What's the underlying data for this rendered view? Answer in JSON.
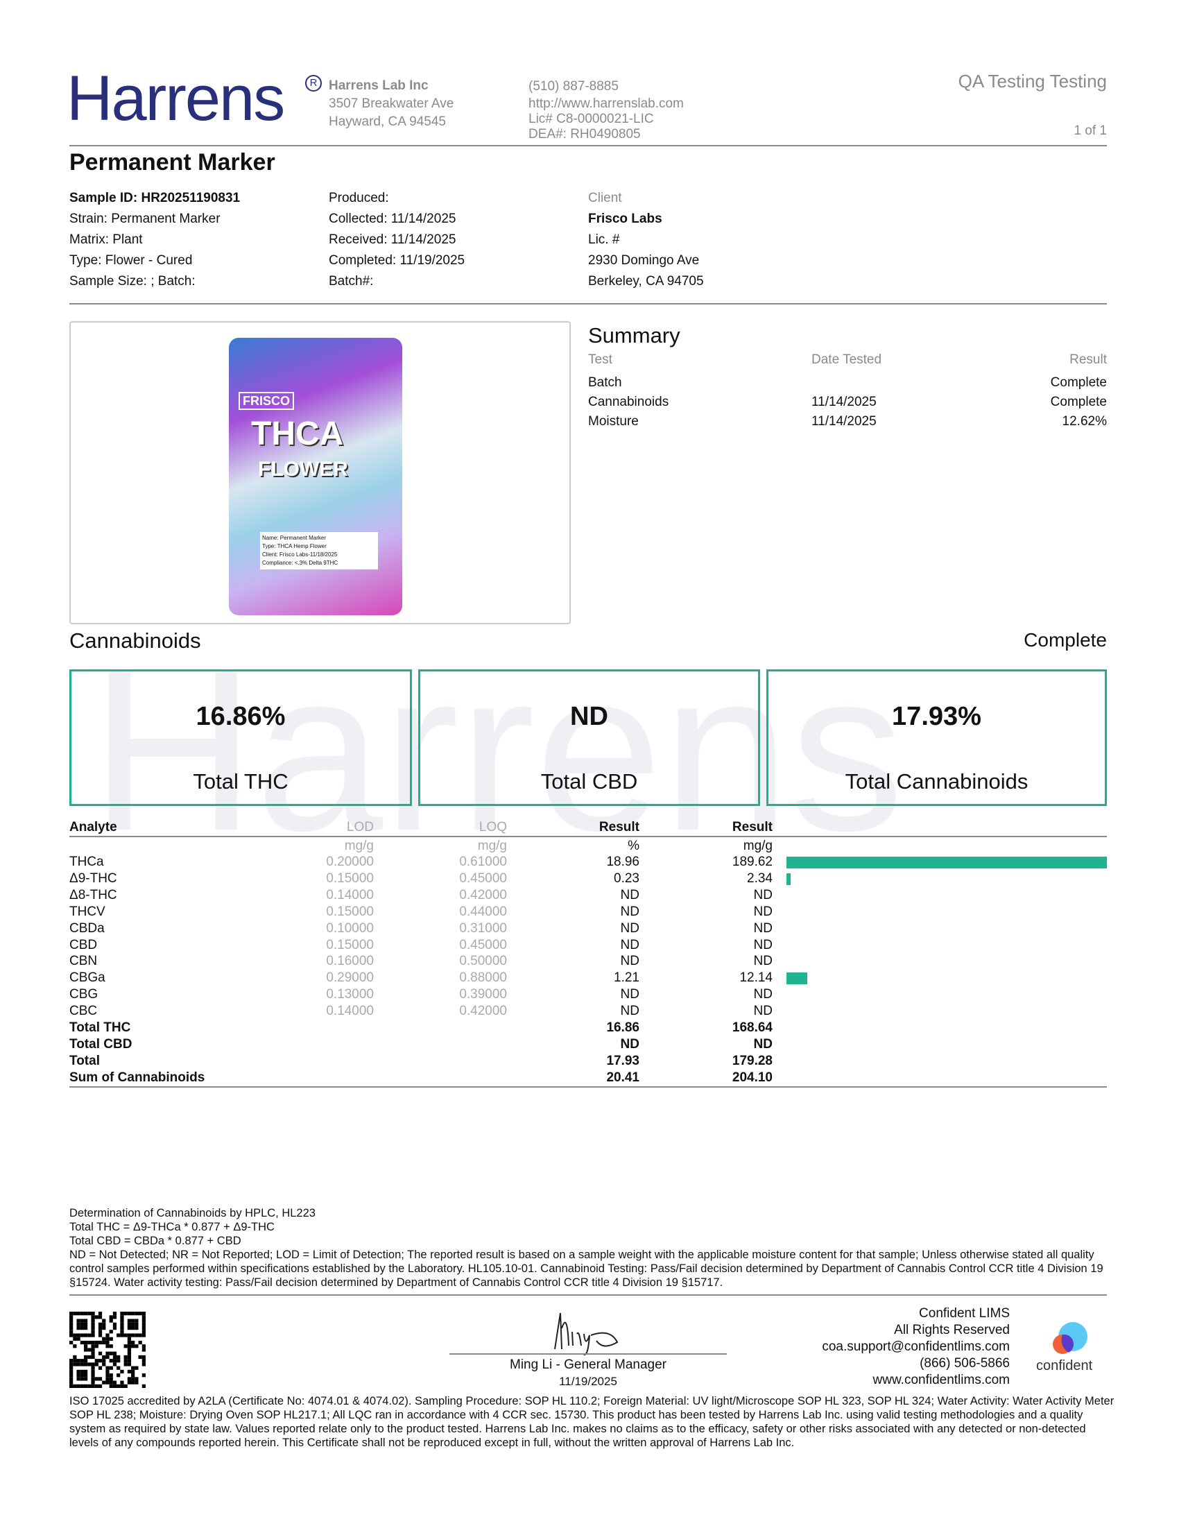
{
  "header": {
    "logo": "Harrens",
    "lab_name": "Harrens Lab Inc",
    "address1": "3507 Breakwater Ave",
    "address2": "Hayward, CA 94545",
    "phone": "(510) 887-8885",
    "website": "http://www.harrenslab.com",
    "license": "Lic# C8-0000021-LIC",
    "dea": "DEA#: RH0490805",
    "doc_title": "QA Testing Testing",
    "page": "1 of 1"
  },
  "title": "Permanent Marker",
  "sample": {
    "col1": [
      "Sample ID: HR20251190831",
      "Strain: Permanent Marker",
      "Matrix: Plant",
      "Type: Flower - Cured",
      "Sample Size: ; Batch:"
    ],
    "col2": [
      "Produced:",
      "Collected: 11/14/2025",
      "Received: 11/14/2025",
      "Completed: 11/19/2025",
      "Batch#:"
    ],
    "client_label": "Client",
    "client": [
      "Frisco Labs",
      "Lic. #",
      "2930 Domingo Ave",
      "Berkeley, CA 94705"
    ]
  },
  "product_image": {
    "brand": "FRISCO",
    "line1": "THCA",
    "line2": "FLOWER",
    "label": [
      "Name: Permanent Marker",
      "Type: THCA Hemp Flower",
      "Client: Frisco Labs-11/18/2025",
      "Compliance: <.3% Delta 9THC"
    ]
  },
  "summary": {
    "title": "Summary",
    "headers": [
      "Test",
      "Date Tested",
      "Result"
    ],
    "rows": [
      [
        "Batch",
        "",
        "Complete"
      ],
      [
        "Cannabinoids",
        "11/14/2025",
        "Complete"
      ],
      [
        "Moisture",
        "11/14/2025",
        "12.62%"
      ]
    ]
  },
  "cannabinoids": {
    "title": "Cannabinoids",
    "status": "Complete",
    "watermark": "Harrens",
    "cards": [
      {
        "value": "16.86%",
        "label": "Total THC"
      },
      {
        "value": "ND",
        "label": "Total CBD"
      },
      {
        "value": "17.93%",
        "label": "Total Cannabinoids"
      }
    ],
    "headers": [
      "Analyte",
      "LOD",
      "LOQ",
      "Result",
      "Result"
    ],
    "units": [
      "",
      "mg/g",
      "mg/g",
      "%",
      "mg/g"
    ],
    "rows": [
      [
        "THCa",
        "0.20000",
        "0.61000",
        "18.96",
        "189.62"
      ],
      [
        "Δ9-THC",
        "0.15000",
        "0.45000",
        "0.23",
        "2.34"
      ],
      [
        "Δ8-THC",
        "0.14000",
        "0.42000",
        "ND",
        "ND"
      ],
      [
        "THCV",
        "0.15000",
        "0.44000",
        "ND",
        "ND"
      ],
      [
        "CBDa",
        "0.10000",
        "0.31000",
        "ND",
        "ND"
      ],
      [
        "CBD",
        "0.15000",
        "0.45000",
        "ND",
        "ND"
      ],
      [
        "CBN",
        "0.16000",
        "0.50000",
        "ND",
        "ND"
      ],
      [
        "CBGa",
        "0.29000",
        "0.88000",
        "1.21",
        "12.14"
      ],
      [
        "CBG",
        "0.13000",
        "0.39000",
        "ND",
        "ND"
      ],
      [
        "CBC",
        "0.14000",
        "0.42000",
        "ND",
        "ND"
      ]
    ],
    "totals": [
      [
        "Total THC",
        "16.86",
        "168.64"
      ],
      [
        "Total CBD",
        "ND",
        "ND"
      ],
      [
        "Total",
        "17.93",
        "179.28"
      ],
      [
        "Sum of Cannabinoids",
        "20.41",
        "204.10"
      ]
    ],
    "bar_color": "#1fb38f"
  },
  "notes": [
    "Determination of Cannabinoids by HPLC, HL223",
    "Total THC = Δ9-THCa * 0.877 + Δ9-THC",
    "Total CBD = CBDa * 0.877 + CBD",
    "ND = Not Detected; NR = Not Reported; LOD = Limit of Detection; The reported result is based on a sample weight with the applicable moisture content for that sample; Unless otherwise stated all quality control samples performed within specifications established by the Laboratory. HL105.10-01. Cannabinoid Testing: Pass/Fail decision determined by Department of Cannabis Control CCR title 4 Division 19 §15724. Water activity testing: Pass/Fail decision determined by Department of Cannabis Control CCR title 4 Division 19 §15717."
  ],
  "signature": {
    "name": "Ming Li - General Manager",
    "date": "11/19/2025"
  },
  "lims": {
    "lines": [
      "Confident LIMS",
      "All Rights Reserved",
      "coa.support@confidentlims.com",
      "(866) 506-5866",
      "www.confidentlims.com"
    ],
    "logo_text": "confident"
  },
  "disclaimer": "ISO 17025 accredited by A2LA (Certificate No: 4074.01 & 4074.02). Sampling Procedure: SOP HL 110.2; Foreign Material: UV light/Microscope SOP HL 323, SOP HL 324; Water Activity: Water Activity Meter SOP HL 238; Moisture: Drying Oven SOP HL217.1; All LQC ran in accordance with 4 CCR sec. 15730. This product has been tested by Harrens Lab Inc. using valid testing methodologies and a quality system as required by state law. Values reported relate only to the product tested. Harrens Lab Inc. makes no claims as to the efficacy, safety or other risks associated with any detected or non-detected levels of any compounds reported herein. This Certificate shall not be reproduced except in full, without the written approval of Harrens Lab Inc."
}
